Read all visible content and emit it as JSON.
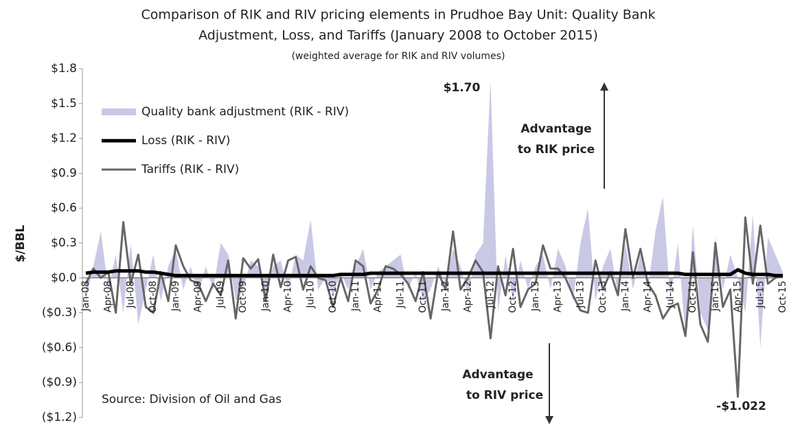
{
  "chart_data": {
    "type": "line",
    "title": [
      "Comparison of RIK and RIV pricing elements in Prudhoe Bay Unit: Quality Bank",
      "Adjustment, Loss, and Tariffs (January 2008 to October 2015)"
    ],
    "subtitle": "(weighted average for RIK and RIV volumes)",
    "ylabel": "$/BBL",
    "categories": [
      "Jan-08",
      null,
      null,
      "Apr-08",
      null,
      null,
      "Jul-08",
      null,
      null,
      "Oct-08",
      null,
      null,
      "Jan-09",
      null,
      null,
      "Apr-09",
      null,
      null,
      "Jul-09",
      null,
      null,
      "Oct-09",
      null,
      null,
      "Jan-10",
      null,
      null,
      "Apr-10",
      null,
      null,
      "Jul-10",
      null,
      null,
      "Oct-10",
      null,
      null,
      "Jan-11",
      null,
      null,
      "Apr-11",
      null,
      null,
      "Jul-11",
      null,
      null,
      "Oct-11",
      null,
      null,
      "Jan-12",
      null,
      null,
      "Apr-12",
      null,
      null,
      "Jul-12",
      null,
      null,
      "Oct-12",
      null,
      null,
      "Jan-13",
      null,
      null,
      "Apr-13",
      null,
      null,
      "Jul-13",
      null,
      null,
      "Oct-13",
      null,
      null,
      "Jan-14",
      null,
      null,
      "Apr-14",
      null,
      null,
      "Jul-14",
      null,
      null,
      "Oct-14",
      null,
      null,
      "Jan-15",
      null,
      null,
      "Apr-15",
      null,
      null,
      "Jul-15",
      null,
      null,
      "Oct-15"
    ],
    "series": [
      {
        "name": "Quality bank adjustment (RIK - RIV)",
        "kind": "area",
        "color": "#c9c9e6",
        "values": [
          -0.2,
          0.1,
          0.4,
          -0.1,
          0.2,
          -0.3,
          0.3,
          -0.4,
          -0.1,
          0.2,
          -0.2,
          0.1,
          0.25,
          -0.1,
          0.1,
          -0.15,
          0.1,
          -0.1,
          0.3,
          0.2,
          -0.2,
          -0.1,
          0.15,
          0.1,
          -0.15,
          0.1,
          0.15,
          -0.1,
          0.2,
          0.15,
          0.5,
          -0.1,
          0.0,
          -0.15,
          0.05,
          -0.1,
          0.1,
          0.25,
          -0.1,
          0.05,
          0.1,
          0.15,
          0.2,
          -0.1,
          0.05,
          -0.2,
          -0.1,
          0.1,
          -0.05,
          0.25,
          0.1,
          -0.15,
          0.2,
          0.3,
          1.7,
          -0.3,
          0.2,
          -0.2,
          0.15,
          -0.1,
          0.1,
          0.2,
          -0.1,
          0.25,
          0.1,
          -0.2,
          0.3,
          0.6,
          -0.2,
          0.1,
          0.25,
          -0.15,
          0.3,
          -0.1,
          0.2,
          -0.1,
          0.4,
          0.7,
          -0.2,
          0.3,
          -0.5,
          0.45,
          -0.3,
          -0.45,
          0.35,
          -0.1,
          0.2,
          0.0,
          -0.3,
          0.55,
          -0.6,
          0.35,
          0.2,
          0.05
        ],
        "value_labels": [
          null,
          null,
          null,
          null,
          null,
          null,
          null,
          null,
          null,
          null,
          null,
          null,
          null,
          null,
          null,
          null,
          null,
          null,
          null,
          null,
          null,
          null,
          null,
          null,
          null,
          null,
          null,
          null,
          null,
          null,
          null,
          null,
          null,
          null,
          null,
          null,
          null,
          null,
          null,
          null,
          null,
          null,
          null,
          null,
          null,
          null,
          null,
          null,
          null,
          null,
          null,
          null,
          null,
          null,
          "$1.70",
          null,
          null,
          null,
          null,
          null,
          null,
          null,
          null,
          null,
          null,
          null,
          null,
          null,
          null,
          null,
          null,
          null,
          null,
          null,
          null,
          null,
          null,
          null,
          null,
          null,
          null,
          null,
          null,
          null,
          null,
          null,
          null,
          null,
          null,
          null,
          null,
          null,
          null,
          null
        ]
      },
      {
        "name": "Loss (RIK - RIV)",
        "kind": "line",
        "color": "#000000",
        "values": [
          0.04,
          0.05,
          0.05,
          0.05,
          0.06,
          0.06,
          0.06,
          0.06,
          0.05,
          0.05,
          0.04,
          0.03,
          0.02,
          0.02,
          0.02,
          0.02,
          0.02,
          0.02,
          0.02,
          0.02,
          0.02,
          0.02,
          0.02,
          0.02,
          0.02,
          0.02,
          0.02,
          0.02,
          0.02,
          0.02,
          0.02,
          0.02,
          0.02,
          0.02,
          0.03,
          0.03,
          0.03,
          0.03,
          0.04,
          0.04,
          0.04,
          0.04,
          0.04,
          0.04,
          0.04,
          0.04,
          0.04,
          0.04,
          0.04,
          0.04,
          0.04,
          0.04,
          0.04,
          0.04,
          0.04,
          0.04,
          0.04,
          0.04,
          0.04,
          0.04,
          0.04,
          0.04,
          0.04,
          0.04,
          0.04,
          0.04,
          0.04,
          0.04,
          0.04,
          0.04,
          0.04,
          0.04,
          0.04,
          0.04,
          0.04,
          0.04,
          0.04,
          0.04,
          0.04,
          0.04,
          0.03,
          0.03,
          0.03,
          0.03,
          0.03,
          0.03,
          0.03,
          0.07,
          0.04,
          0.03,
          0.03,
          0.03,
          0.02,
          0.02
        ]
      },
      {
        "name": "Tariffs (RIK - RIV)",
        "kind": "line",
        "color": "#666666",
        "values": [
          -0.05,
          0.08,
          0.0,
          0.05,
          -0.3,
          0.48,
          -0.05,
          0.2,
          -0.25,
          -0.3,
          0.05,
          -0.2,
          0.28,
          0.1,
          -0.02,
          -0.05,
          -0.2,
          -0.05,
          -0.15,
          0.15,
          -0.35,
          0.17,
          0.08,
          0.16,
          -0.2,
          0.2,
          -0.08,
          0.15,
          0.18,
          -0.1,
          0.1,
          0.0,
          -0.02,
          -0.25,
          0.0,
          -0.2,
          0.15,
          0.1,
          -0.22,
          -0.1,
          0.1,
          0.08,
          0.03,
          -0.05,
          -0.2,
          0.05,
          -0.35,
          0.05,
          -0.1,
          0.4,
          -0.1,
          0.0,
          0.15,
          0.05,
          -0.52,
          0.1,
          -0.15,
          0.25,
          -0.25,
          -0.1,
          -0.05,
          0.28,
          0.08,
          0.08,
          0.0,
          -0.15,
          -0.28,
          -0.3,
          0.15,
          -0.1,
          0.05,
          -0.15,
          0.42,
          0.0,
          0.25,
          -0.05,
          -0.15,
          -0.35,
          -0.25,
          -0.22,
          -0.5,
          0.22,
          -0.4,
          -0.55,
          0.3,
          -0.25,
          -0.1,
          -1.022,
          0.52,
          -0.05,
          0.45,
          -0.05,
          0.0,
          0.02
        ],
        "value_labels": [
          null,
          null,
          null,
          null,
          null,
          null,
          null,
          null,
          null,
          null,
          null,
          null,
          null,
          null,
          null,
          null,
          null,
          null,
          null,
          null,
          null,
          null,
          null,
          null,
          null,
          null,
          null,
          null,
          null,
          null,
          null,
          null,
          null,
          null,
          null,
          null,
          null,
          null,
          null,
          null,
          null,
          null,
          null,
          null,
          null,
          null,
          null,
          null,
          null,
          null,
          null,
          null,
          null,
          null,
          null,
          null,
          null,
          null,
          null,
          null,
          null,
          null,
          null,
          null,
          null,
          null,
          null,
          null,
          null,
          null,
          null,
          null,
          null,
          null,
          null,
          null,
          null,
          null,
          null,
          null,
          null,
          null,
          null,
          null,
          null,
          null,
          null,
          "-$1.022",
          null,
          null,
          null,
          null,
          null,
          null
        ]
      }
    ],
    "ylim": [
      -1.2,
      1.8
    ],
    "yticks": [
      {
        "value": 1.8,
        "label": "$1.8"
      },
      {
        "value": 1.5,
        "label": "$1.5"
      },
      {
        "value": 1.2,
        "label": "$1.2"
      },
      {
        "value": 0.9,
        "label": "$0.9"
      },
      {
        "value": 0.6,
        "label": "$0.6"
      },
      {
        "value": 0.3,
        "label": "$0.3"
      },
      {
        "value": 0,
        "label": "$0.0"
      },
      {
        "value": -0.3,
        "label": "($0.3)"
      },
      {
        "value": -0.6,
        "label": "($0.6)"
      },
      {
        "value": -0.9,
        "label": "($0.9)"
      },
      {
        "value": -1.2,
        "label": "($1.2)"
      }
    ],
    "legend": "upper left",
    "annotations": {
      "rik": [
        "Advantage",
        "to RIK price"
      ],
      "riv": [
        "Advantage",
        "to RIV price"
      ],
      "source": "Source: Division of Oil and Gas"
    }
  }
}
